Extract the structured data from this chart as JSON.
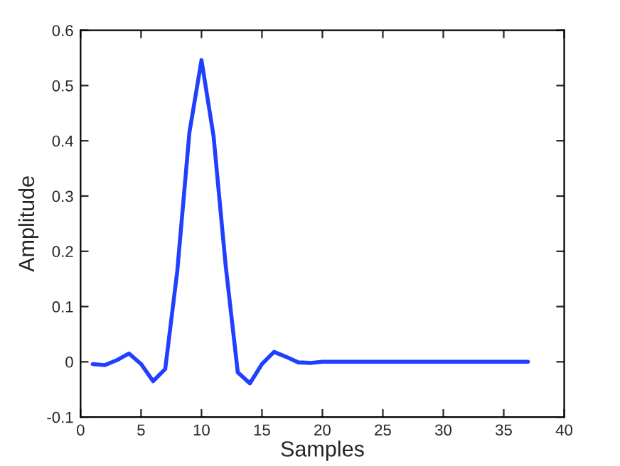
{
  "chart_data": {
    "type": "line",
    "xlabel": "Samples",
    "ylabel": "Amplitude",
    "x": [
      1,
      2,
      3,
      4,
      5,
      6,
      7,
      8,
      9,
      10,
      11,
      12,
      13,
      14,
      15,
      16,
      17,
      18,
      19,
      20,
      21,
      22,
      23,
      24,
      25,
      26,
      27,
      28,
      29,
      30,
      31,
      32,
      33,
      34,
      35,
      36,
      37
    ],
    "series": [
      {
        "color": "#2040ff",
        "values": [
          -0.004,
          -0.006,
          0.003,
          0.015,
          -0.004,
          -0.035,
          -0.013,
          0.165,
          0.415,
          0.546,
          0.408,
          0.174,
          -0.019,
          -0.039,
          -0.004,
          0.018,
          0.009,
          -0.001,
          -0.002,
          0,
          0,
          0,
          0,
          0,
          0,
          0,
          0,
          0,
          0,
          0,
          0,
          0,
          0,
          0,
          0,
          0,
          0
        ]
      }
    ],
    "xlim": [
      0,
      40
    ],
    "xticks": [
      0,
      5,
      10,
      15,
      20,
      25,
      30,
      35,
      40
    ],
    "ylim": [
      -0.1,
      0.6
    ],
    "yticks": [
      -0.1,
      0,
      0.1,
      0.2,
      0.3,
      0.4,
      0.5,
      0.6
    ],
    "grid": false,
    "legend": false,
    "marker": "none",
    "line_style": "solid"
  }
}
